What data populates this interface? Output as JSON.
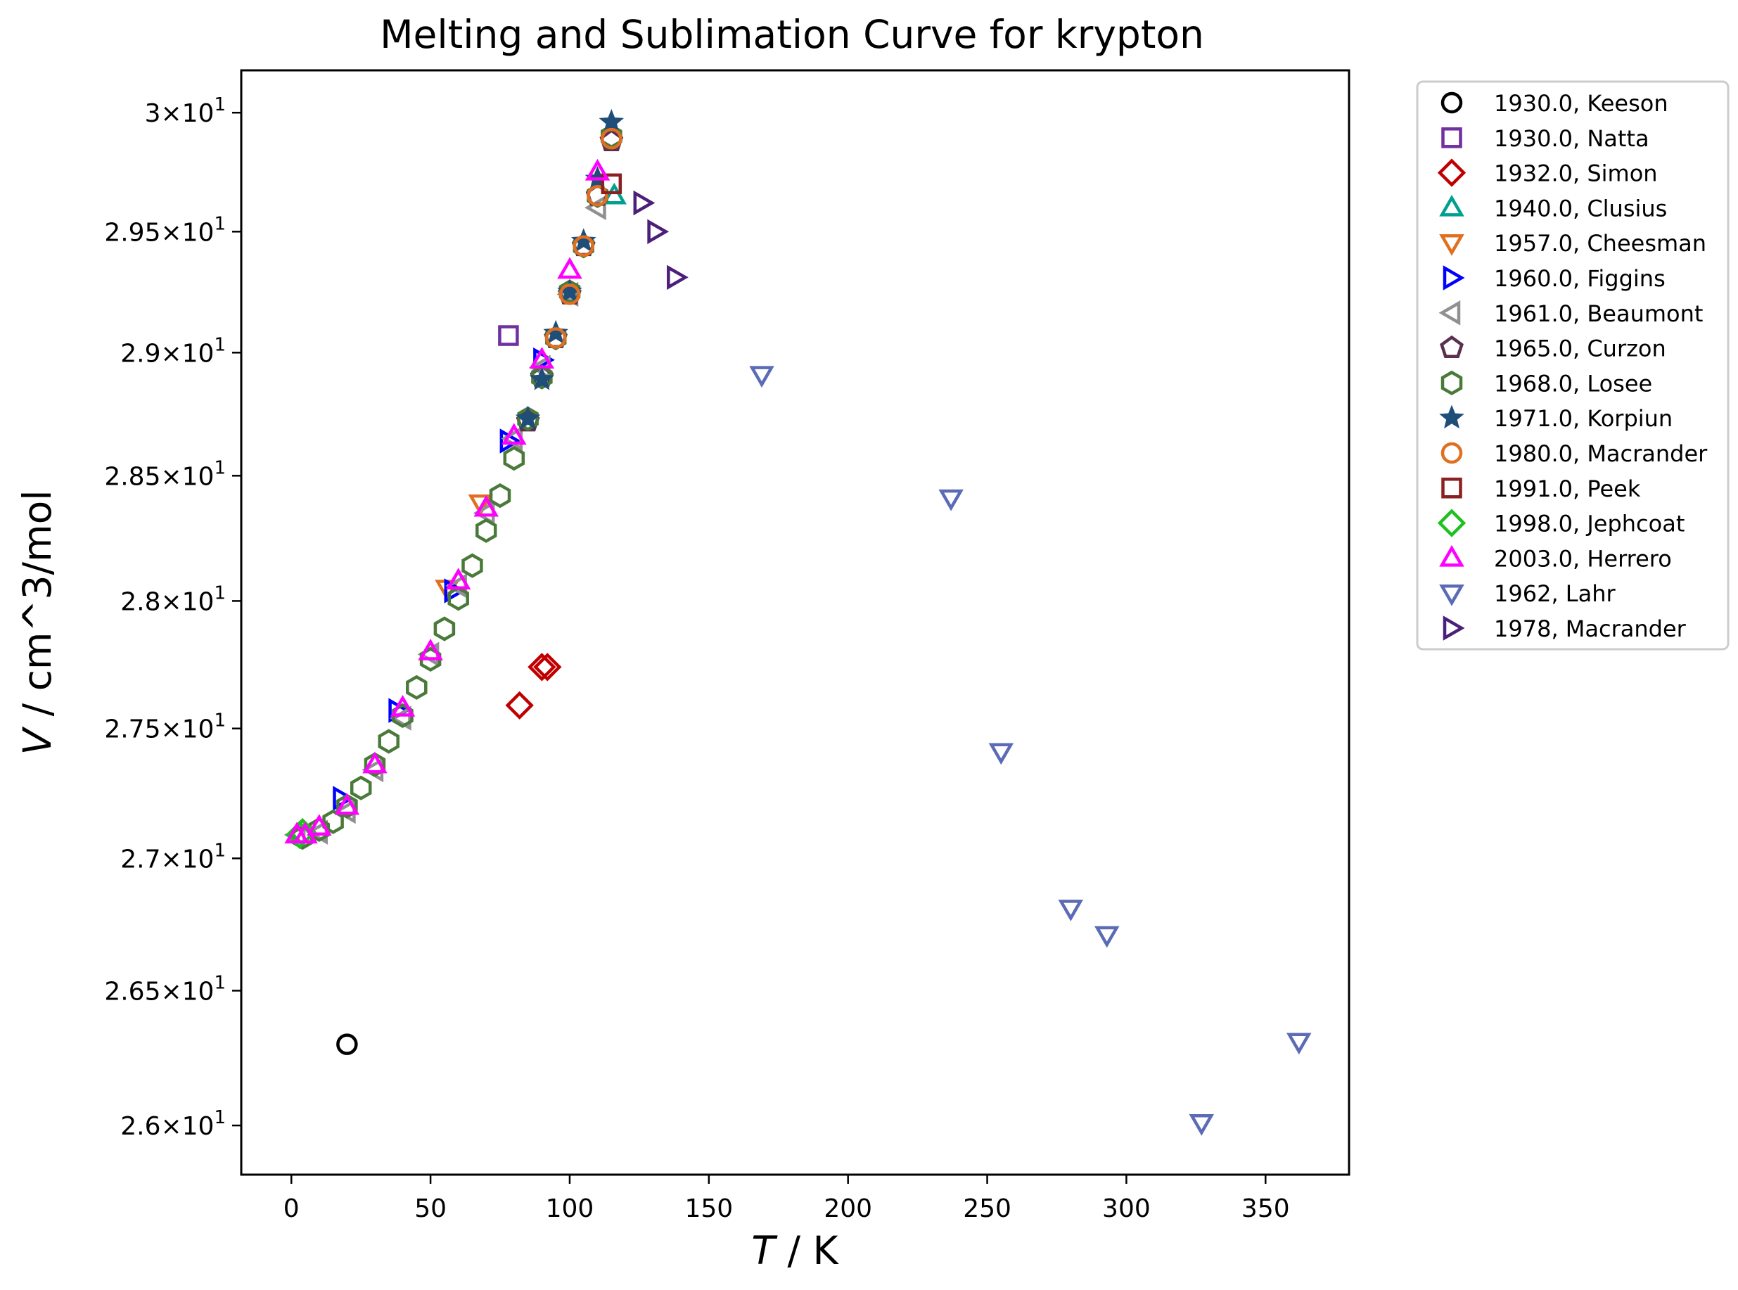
{
  "chart_data": {
    "type": "scatter",
    "title": "Melting and Sublimation Curve for krypton",
    "xlabel_var": "T",
    "xlabel_unit": " / K",
    "ylabel_var": "V",
    "ylabel_unit": " / cm^3/mol",
    "xlim": [
      -18,
      380
    ],
    "ylim": [
      25.82,
      30.18
    ],
    "log_y": true,
    "grid": false,
    "legend_position": "outside-right",
    "x_ticks": [
      0,
      50,
      100,
      150,
      200,
      250,
      300,
      350
    ],
    "x_tick_labels": [
      "0",
      "50",
      "100",
      "150",
      "200",
      "250",
      "300",
      "350"
    ],
    "y_ticks": [
      26.0,
      26.5,
      27.0,
      27.5,
      28.0,
      28.5,
      29.0,
      29.5,
      30.0
    ],
    "y_tick_mantissas": [
      "2.6",
      "2.65",
      "2.7",
      "2.75",
      "2.8",
      "2.85",
      "2.9",
      "2.95",
      "3"
    ],
    "y_tick_base": "10",
    "y_tick_exp": "1",
    "series": [
      {
        "name": "1930.0, Keeson",
        "marker": "circle",
        "color": "#000000",
        "points": [
          [
            20,
            26.3
          ]
        ]
      },
      {
        "name": "1930.0, Natta",
        "marker": "square",
        "color": "#7030a0",
        "points": [
          [
            78,
            29.07
          ]
        ]
      },
      {
        "name": "1932.0, Simon",
        "marker": "diamond",
        "color": "#c00000",
        "points": [
          [
            82,
            27.59
          ],
          [
            90,
            27.74
          ],
          [
            92,
            27.74
          ]
        ]
      },
      {
        "name": "1940.0, Clusius",
        "marker": "triangle-up",
        "color": "#00a090",
        "points": [
          [
            116,
            29.65
          ]
        ]
      },
      {
        "name": "1957.0, Cheesman",
        "marker": "triangle-down",
        "color": "#e07020",
        "points": [
          [
            56,
            28.05
          ],
          [
            68,
            28.39
          ]
        ]
      },
      {
        "name": "1960.0, Figgins",
        "marker": "triangle-right",
        "color": "#0000ff",
        "points": [
          [
            18,
            27.23
          ],
          [
            38,
            27.57
          ],
          [
            58,
            28.04
          ],
          [
            78,
            28.64
          ],
          [
            90,
            28.97
          ]
        ]
      },
      {
        "name": "1961.0, Beaumont",
        "marker": "triangle-left",
        "color": "#909090",
        "points": [
          [
            2,
            27.09
          ],
          [
            10,
            27.1
          ],
          [
            20,
            27.18
          ],
          [
            30,
            27.34
          ],
          [
            40,
            27.54
          ],
          [
            50,
            27.79
          ],
          [
            60,
            28.06
          ],
          [
            70,
            28.35
          ],
          [
            80,
            28.65
          ],
          [
            90,
            28.94
          ],
          [
            100,
            29.24
          ],
          [
            110,
            29.6
          ]
        ]
      },
      {
        "name": "1965.0, Curzon",
        "marker": "pentagon",
        "color": "#5a3050",
        "points": [
          [
            85,
            28.72
          ],
          [
            90,
            28.9
          ],
          [
            95,
            29.06
          ],
          [
            100,
            29.24
          ],
          [
            105,
            29.44
          ],
          [
            110,
            29.65
          ],
          [
            115,
            29.88
          ]
        ]
      },
      {
        "name": "1968.0, Losee",
        "marker": "hexagon",
        "color": "#4a7a3a",
        "points": [
          [
            4,
            27.08
          ],
          [
            10,
            27.11
          ],
          [
            15,
            27.14
          ],
          [
            20,
            27.2
          ],
          [
            25,
            27.27
          ],
          [
            30,
            27.36
          ],
          [
            35,
            27.45
          ],
          [
            40,
            27.55
          ],
          [
            45,
            27.66
          ],
          [
            50,
            27.77
          ],
          [
            55,
            27.89
          ],
          [
            60,
            28.01
          ],
          [
            65,
            28.14
          ],
          [
            70,
            28.28
          ],
          [
            75,
            28.42
          ],
          [
            80,
            28.57
          ],
          [
            85,
            28.73
          ],
          [
            90,
            28.9
          ],
          [
            95,
            29.06
          ],
          [
            100,
            29.25
          ],
          [
            105,
            29.44
          ],
          [
            110,
            29.65
          ],
          [
            115,
            29.9
          ]
        ]
      },
      {
        "name": "1971.0, Korpiun",
        "marker": "star",
        "color": "#1f4e79",
        "points": [
          [
            85,
            28.73
          ],
          [
            90,
            28.89
          ],
          [
            95,
            29.08
          ],
          [
            100,
            29.25
          ],
          [
            105,
            29.46
          ],
          [
            110,
            29.72
          ],
          [
            115,
            29.96
          ]
        ]
      },
      {
        "name": "1980.0, Macrander",
        "marker": "circle",
        "color": "#e07020",
        "points": [
          [
            95,
            29.06
          ],
          [
            100,
            29.24
          ],
          [
            105,
            29.44
          ],
          [
            110,
            29.65
          ],
          [
            115,
            29.89
          ]
        ]
      },
      {
        "name": "1991.0, Peek",
        "marker": "square",
        "color": "#8b2020",
        "points": [
          [
            115,
            29.7
          ]
        ]
      },
      {
        "name": "1998.0, Jephcoat",
        "marker": "diamond",
        "color": "#20c020",
        "points": [
          [
            3,
            27.09
          ],
          [
            4,
            27.1
          ]
        ]
      },
      {
        "name": "2003.0, Herrero",
        "marker": "triangle-up",
        "color": "#ff00ff",
        "points": [
          [
            2,
            27.09
          ],
          [
            5,
            27.09
          ],
          [
            10,
            27.12
          ],
          [
            20,
            27.2
          ],
          [
            30,
            27.36
          ],
          [
            40,
            27.58
          ],
          [
            50,
            27.8
          ],
          [
            60,
            28.08
          ],
          [
            70,
            28.37
          ],
          [
            80,
            28.66
          ],
          [
            90,
            28.97
          ],
          [
            100,
            29.34
          ],
          [
            110,
            29.75
          ]
        ]
      },
      {
        "name": "1962, Lahr",
        "marker": "triangle-down",
        "color": "#5b6bb5",
        "points": [
          [
            169,
            28.91
          ],
          [
            237,
            28.41
          ],
          [
            255,
            27.41
          ],
          [
            280,
            26.81
          ],
          [
            293,
            26.71
          ],
          [
            327,
            26.01
          ],
          [
            362,
            26.31
          ]
        ]
      },
      {
        "name": "1978, Macrander",
        "marker": "triangle-right",
        "color": "#4b1f7a",
        "points": [
          [
            126,
            29.62
          ],
          [
            131,
            29.5
          ],
          [
            138,
            29.31
          ]
        ]
      }
    ]
  }
}
